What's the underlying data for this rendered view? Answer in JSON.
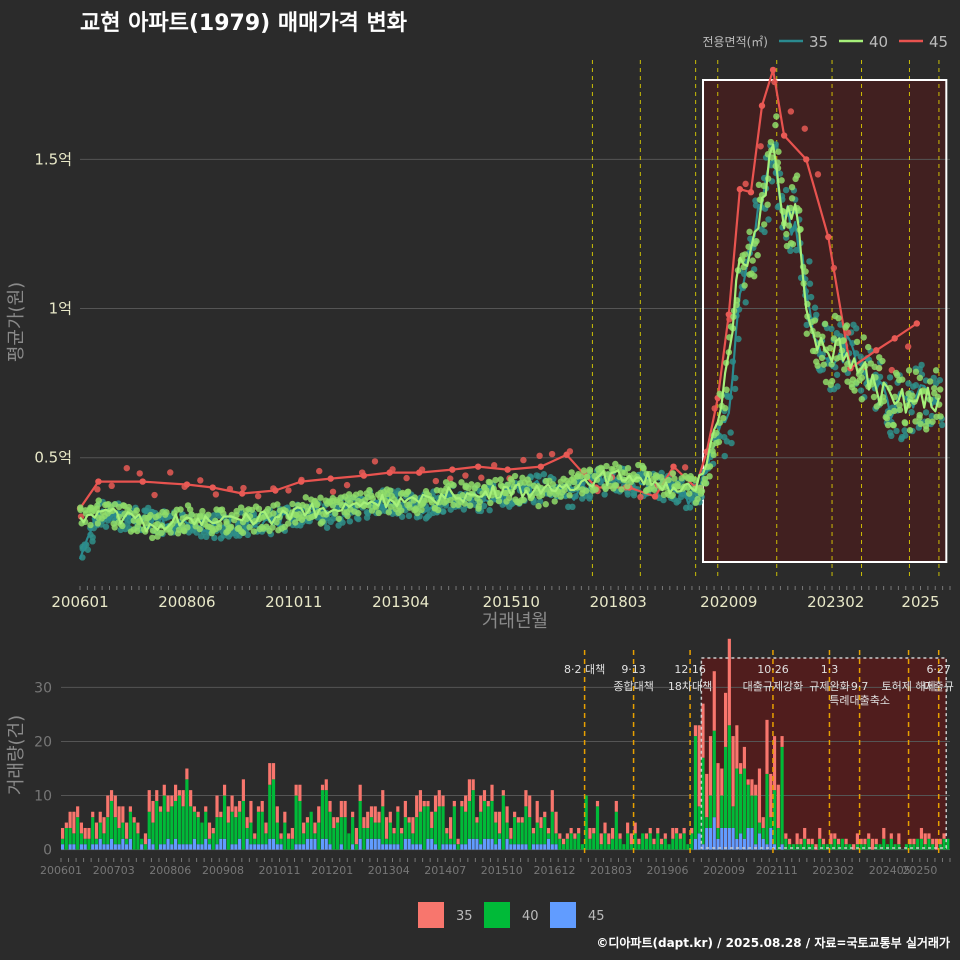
{
  "title": "교현 아파트(1979) 매매가격 변화",
  "footer": "©디아파트(dapt.kr) / 2025.08.28 / 자료=국토교통부 실거래가",
  "colors": {
    "s35": "#f8766d",
    "s40": "#00ba38",
    "s45": "#619cff",
    "line35": "#2a8a8f",
    "line40": "#a6f07a",
    "line45": "#e8534f",
    "vline": "#e6d800",
    "policy": "#e8a000"
  },
  "chart_data": [
    {
      "type": "line",
      "xlabel": "거래년월",
      "ylabel": "평균가(원)",
      "legend_title": "전용면적(㎡)",
      "legend_position": "top-right",
      "x_ticks": [
        "200601",
        "200806",
        "201011",
        "201304",
        "201510",
        "201803",
        "202009",
        "202302",
        "2025"
      ],
      "y_ticks": [
        {
          "v": 0.5,
          "label": "0.5억"
        },
        {
          "v": 1.0,
          "label": "1억"
        },
        {
          "v": 1.5,
          "label": "1.5억"
        }
      ],
      "ylim": [
        0.09,
        1.85
      ],
      "grid": true,
      "highlight_range": [
        "2020-02",
        "2025-08"
      ],
      "policy_lines": [
        "2017-08",
        "2018-09",
        "2019-12",
        "2020-06",
        "2021-10",
        "2023-01",
        "2023-09",
        "2024-10",
        "2025-06"
      ],
      "series": [
        {
          "name": "35",
          "points": [
            [
              "2006-01",
              0.16
            ],
            [
              "2006-06",
              0.31
            ],
            [
              "2007-01",
              0.3
            ],
            [
              "2007-09",
              0.29
            ],
            [
              "2008-06",
              0.28
            ],
            [
              "2009-01",
              0.27
            ],
            [
              "2009-09",
              0.28
            ],
            [
              "2010-06",
              0.28
            ],
            [
              "2011-01",
              0.31
            ],
            [
              "2011-09",
              0.31
            ],
            [
              "2012-06",
              0.34
            ],
            [
              "2013-01",
              0.35
            ],
            [
              "2013-09",
              0.33
            ],
            [
              "2014-06",
              0.37
            ],
            [
              "2015-01",
              0.36
            ],
            [
              "2015-09",
              0.38
            ],
            [
              "2016-06",
              0.4
            ],
            [
              "2017-01",
              0.37
            ],
            [
              "2017-09",
              0.42
            ],
            [
              "2018-06",
              0.42
            ],
            [
              "2019-01",
              0.41
            ],
            [
              "2019-06",
              0.39
            ],
            [
              "2019-12",
              0.36
            ],
            [
              "2020-03",
              0.45
            ],
            [
              "2020-06",
              0.58
            ],
            [
              "2020-09",
              0.65
            ],
            [
              "2020-12",
              1.05
            ],
            [
              "2021-03",
              1.23
            ],
            [
              "2021-06",
              1.35
            ],
            [
              "2021-09",
              1.5
            ],
            [
              "2021-12",
              1.3
            ],
            [
              "2022-03",
              1.29
            ],
            [
              "2022-06",
              1.05
            ],
            [
              "2022-09",
              0.89
            ],
            [
              "2022-12",
              0.83
            ],
            [
              "2023-03",
              0.85
            ],
            [
              "2023-06",
              0.89
            ],
            [
              "2023-09",
              0.79
            ],
            [
              "2024-01",
              0.73
            ],
            [
              "2024-06",
              0.66
            ],
            [
              "2024-12",
              0.71
            ],
            [
              "2025-06",
              0.68
            ]
          ]
        },
        {
          "name": "40",
          "points": [
            [
              "2006-01",
              0.3
            ],
            [
              "2006-06",
              0.32
            ],
            [
              "2007-01",
              0.3
            ],
            [
              "2007-09",
              0.27
            ],
            [
              "2008-06",
              0.3
            ],
            [
              "2009-01",
              0.28
            ],
            [
              "2009-09",
              0.29
            ],
            [
              "2010-06",
              0.3
            ],
            [
              "2011-01",
              0.33
            ],
            [
              "2011-09",
              0.32
            ],
            [
              "2012-06",
              0.35
            ],
            [
              "2013-01",
              0.36
            ],
            [
              "2013-09",
              0.35
            ],
            [
              "2014-06",
              0.38
            ],
            [
              "2015-01",
              0.37
            ],
            [
              "2015-09",
              0.4
            ],
            [
              "2016-06",
              0.38
            ],
            [
              "2017-01",
              0.41
            ],
            [
              "2017-09",
              0.43
            ],
            [
              "2018-06",
              0.44
            ],
            [
              "2019-01",
              0.42
            ],
            [
              "2019-06",
              0.4
            ],
            [
              "2019-12",
              0.39
            ],
            [
              "2020-03",
              0.48
            ],
            [
              "2020-06",
              0.62
            ],
            [
              "2020-09",
              0.85
            ],
            [
              "2020-12",
              1.17
            ],
            [
              "2021-03",
              1.2
            ],
            [
              "2021-06",
              1.37
            ],
            [
              "2021-09",
              1.55
            ],
            [
              "2021-12",
              1.27
            ],
            [
              "2022-03",
              1.35
            ],
            [
              "2022-06",
              1.0
            ],
            [
              "2022-09",
              0.86
            ],
            [
              "2022-12",
              0.85
            ],
            [
              "2023-03",
              0.9
            ],
            [
              "2023-06",
              0.8
            ],
            [
              "2023-09",
              0.8
            ],
            [
              "2024-01",
              0.73
            ],
            [
              "2024-06",
              0.68
            ],
            [
              "2024-12",
              0.69
            ],
            [
              "2025-06",
              0.7
            ]
          ]
        },
        {
          "name": "45",
          "points": [
            [
              "2006-01",
              0.33
            ],
            [
              "2006-06",
              0.42
            ],
            [
              "2007-06",
              0.42
            ],
            [
              "2008-06",
              0.41
            ],
            [
              "2009-01",
              0.4
            ],
            [
              "2009-09",
              0.38
            ],
            [
              "2010-06",
              0.39
            ],
            [
              "2011-01",
              0.42
            ],
            [
              "2011-09",
              0.43
            ],
            [
              "2012-06",
              0.44
            ],
            [
              "2013-01",
              0.45
            ],
            [
              "2013-09",
              0.45
            ],
            [
              "2014-06",
              0.46
            ],
            [
              "2015-01",
              0.47
            ],
            [
              "2015-09",
              0.46
            ],
            [
              "2016-06",
              0.47
            ],
            [
              "2017-01",
              0.51
            ],
            [
              "2017-09",
              0.4
            ],
            [
              "2018-06",
              0.4
            ],
            [
              "2019-01",
              0.37
            ],
            [
              "2019-06",
              0.47
            ],
            [
              "2019-12",
              0.4
            ],
            [
              "2020-03",
              0.52
            ],
            [
              "2020-06",
              0.7
            ],
            [
              "2020-09",
              0.98
            ],
            [
              "2020-12",
              1.4
            ],
            [
              "2021-03",
              1.39
            ],
            [
              "2021-06",
              1.68
            ],
            [
              "2021-09",
              1.8
            ],
            [
              "2021-12",
              1.58
            ],
            [
              "2022-06",
              1.5
            ],
            [
              "2022-12",
              1.24
            ],
            [
              "2023-06",
              0.8
            ],
            [
              "2024-01",
              0.86
            ],
            [
              "2024-06",
              0.9
            ],
            [
              "2024-12",
              0.95
            ]
          ]
        }
      ]
    },
    {
      "type": "bar",
      "stacked": true,
      "ylabel": "거래량(건)",
      "x_ticks": [
        "200601",
        "200703",
        "200806",
        "200908",
        "201011",
        "201201",
        "201304",
        "201407",
        "201510",
        "201612",
        "201803",
        "201906",
        "202009",
        "202111",
        "202302",
        "202405",
        "20250"
      ],
      "y_ticks": [
        0,
        10,
        20,
        30
      ],
      "ylim": [
        -1,
        36
      ],
      "legend": [
        "35",
        "40",
        "45"
      ],
      "legend_position": "bottom",
      "highlight_range": [
        "2020-03",
        "2025-08"
      ],
      "annotations": [
        {
          "date": "2017-08",
          "line1": "8·2 대책",
          "line2": ""
        },
        {
          "date": "2018-09",
          "line1": "9·13",
          "line2": "종합대책"
        },
        {
          "date": "2019-12",
          "line1": "12·16",
          "line2": "18차대책"
        },
        {
          "date": "2021-10",
          "line1": "10·26",
          "line2": "대출규제강화"
        },
        {
          "date": "2023-01",
          "line1": "1·3",
          "line2": "규제완화"
        },
        {
          "date": "2023-09",
          "line1": "",
          "line2": "9·7"
        },
        {
          "date": "2023-09",
          "line1": "",
          "line2": "특례대출축소"
        },
        {
          "date": "2024-10",
          "line1": "",
          "line2": "토허제 해제"
        },
        {
          "date": "2025-06",
          "line1": "6·27",
          "line2": "대출규"
        }
      ],
      "series": [
        {
          "name": "35",
          "values_by_year": [
            {
              "year": 2006,
              "avg": 2
            },
            {
              "year": 2007,
              "avg": 2
            },
            {
              "year": 2008,
              "avg": 2
            },
            {
              "year": 2009,
              "avg": 2
            },
            {
              "year": 2010,
              "avg": 2
            },
            {
              "year": 2011,
              "avg": 2
            },
            {
              "year": 2012,
              "avg": 2
            },
            {
              "year": 2013,
              "avg": 2
            },
            {
              "year": 2014,
              "avg": 2
            },
            {
              "year": 2015,
              "avg": 2
            },
            {
              "year": 2016,
              "avg": 2
            },
            {
              "year": 2017,
              "avg": 1
            },
            {
              "year": 2018,
              "avg": 1
            },
            {
              "year": 2019,
              "avg": 1
            },
            {
              "year": 2020,
              "avg": 8
            },
            {
              "year": 2021,
              "avg": 5
            },
            {
              "year": 2022,
              "avg": 1
            },
            {
              "year": 2023,
              "avg": 1
            },
            {
              "year": 2024,
              "avg": 1
            },
            {
              "year": 2025,
              "avg": 1
            }
          ]
        },
        {
          "name": "40",
          "values_by_year": [
            {
              "year": 2006,
              "avg": 3
            },
            {
              "year": 2007,
              "avg": 3
            },
            {
              "year": 2008,
              "avg": 5
            },
            {
              "year": 2009,
              "avg": 4
            },
            {
              "year": 2010,
              "avg": 5
            },
            {
              "year": 2011,
              "avg": 5
            },
            {
              "year": 2012,
              "avg": 4
            },
            {
              "year": 2013,
              "avg": 4
            },
            {
              "year": 2014,
              "avg": 4
            },
            {
              "year": 2015,
              "avg": 4
            },
            {
              "year": 2016,
              "avg": 4
            },
            {
              "year": 2017,
              "avg": 2
            },
            {
              "year": 2018,
              "avg": 2
            },
            {
              "year": 2019,
              "avg": 2
            },
            {
              "year": 2020,
              "avg": 10
            },
            {
              "year": 2021,
              "avg": 7
            },
            {
              "year": 2022,
              "avg": 1
            },
            {
              "year": 2023,
              "avg": 1
            },
            {
              "year": 2024,
              "avg": 1
            },
            {
              "year": 2025,
              "avg": 1
            }
          ]
        },
        {
          "name": "45",
          "values_by_year": [
            {
              "year": 2006,
              "avg": 1
            },
            {
              "year": 2007,
              "avg": 1
            },
            {
              "year": 2008,
              "avg": 1
            },
            {
              "year": 2009,
              "avg": 1
            },
            {
              "year": 2010,
              "avg": 1
            },
            {
              "year": 2011,
              "avg": 1
            },
            {
              "year": 2012,
              "avg": 1
            },
            {
              "year": 2013,
              "avg": 1
            },
            {
              "year": 2014,
              "avg": 1
            },
            {
              "year": 2015,
              "avg": 1
            },
            {
              "year": 2016,
              "avg": 1
            },
            {
              "year": 2017,
              "avg": 0
            },
            {
              "year": 2018,
              "avg": 0
            },
            {
              "year": 2019,
              "avg": 0
            },
            {
              "year": 2020,
              "avg": 3
            },
            {
              "year": 2021,
              "avg": 2
            },
            {
              "year": 2022,
              "avg": 0
            },
            {
              "year": 2023,
              "avg": 0
            },
            {
              "year": 2024,
              "avg": 0
            },
            {
              "year": 2025,
              "avg": 0
            }
          ]
        }
      ]
    }
  ]
}
